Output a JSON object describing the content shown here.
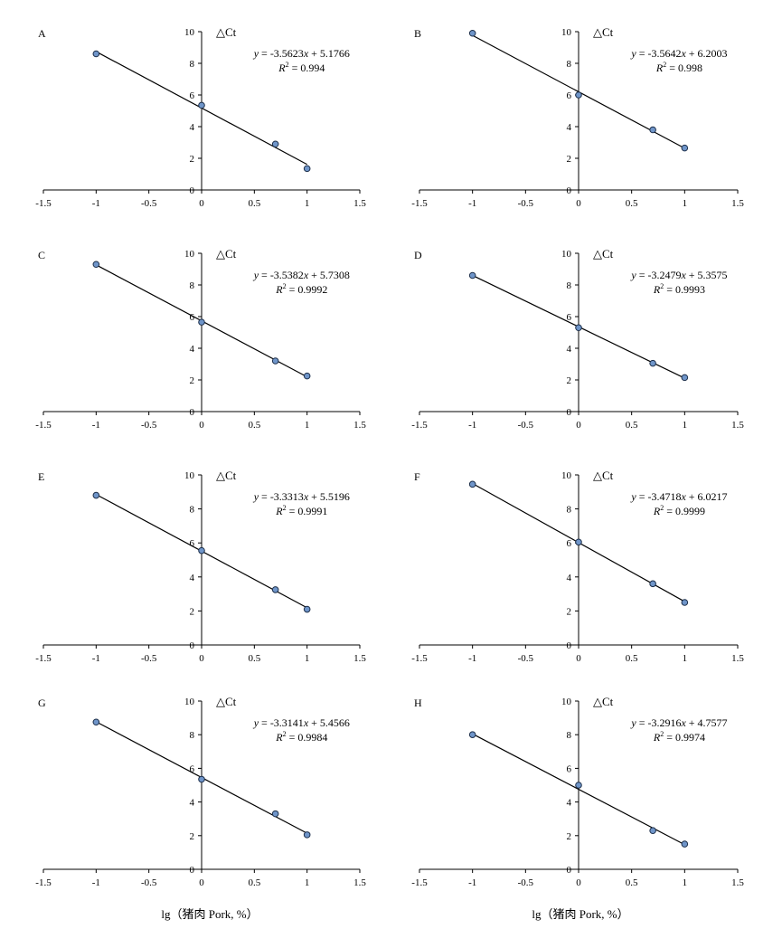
{
  "figure": {
    "bottom_xlabels": [
      "lg（猪肉 Pork, %）",
      "lg（猪肉 Pork, %）"
    ]
  },
  "chart_data": [
    {
      "type": "scatter",
      "panel": "A",
      "ylabel": "△Ct",
      "x": [
        -1,
        0,
        0.7,
        1
      ],
      "y": [
        8.6,
        5.35,
        2.9,
        1.35
      ],
      "fit": {
        "slope": -3.5623,
        "intercept": 5.1766,
        "equation": "y = -3.5623x + 5.1766",
        "r2_label": "R² = 0.994"
      },
      "xlim": [
        -1.5,
        1.5
      ],
      "ylim": [
        0,
        10
      ],
      "xticks": [
        "-1.5",
        "-1",
        "-0.5",
        "0",
        "0.5",
        "1",
        "1.5"
      ],
      "yticks": [
        "0",
        "2",
        "4",
        "6",
        "8",
        "10"
      ],
      "grid": false,
      "colors": {
        "marker": "#6f95c9",
        "line": "#000000"
      }
    },
    {
      "type": "scatter",
      "panel": "B",
      "ylabel": "△Ct",
      "x": [
        -1,
        0,
        0.7,
        1
      ],
      "y": [
        9.9,
        6.0,
        3.8,
        2.65
      ],
      "fit": {
        "slope": -3.5642,
        "intercept": 6.2003,
        "equation": "y = -3.5642x + 6.2003",
        "r2_label": "R² = 0.998"
      },
      "xlim": [
        -1.5,
        1.5
      ],
      "ylim": [
        0,
        10
      ],
      "xticks": [
        "-1.5",
        "-1",
        "-0.5",
        "0",
        "0.5",
        "1",
        "1.5"
      ],
      "yticks": [
        "0",
        "2",
        "4",
        "6",
        "8",
        "10"
      ],
      "grid": false,
      "colors": {
        "marker": "#6f95c9",
        "line": "#000000"
      }
    },
    {
      "type": "scatter",
      "panel": "C",
      "ylabel": "△Ct",
      "x": [
        -1,
        0,
        0.7,
        1
      ],
      "y": [
        9.3,
        5.65,
        3.2,
        2.25
      ],
      "fit": {
        "slope": -3.5382,
        "intercept": 5.7308,
        "equation": "y = -3.5382x + 5.7308",
        "r2_label": "R² = 0.9992"
      },
      "xlim": [
        -1.5,
        1.5
      ],
      "ylim": [
        0,
        10
      ],
      "xticks": [
        "-1.5",
        "-1",
        "-0.5",
        "0",
        "0.5",
        "1",
        "1.5"
      ],
      "yticks": [
        "0",
        "2",
        "4",
        "6",
        "8",
        "10"
      ],
      "grid": false,
      "colors": {
        "marker": "#6f95c9",
        "line": "#000000"
      }
    },
    {
      "type": "scatter",
      "panel": "D",
      "ylabel": "△Ct",
      "x": [
        -1,
        0,
        0.7,
        1
      ],
      "y": [
        8.6,
        5.3,
        3.05,
        2.15
      ],
      "fit": {
        "slope": -3.2479,
        "intercept": 5.3575,
        "equation": "y = -3.2479x + 5.3575",
        "r2_label": "R² = 0.9993"
      },
      "xlim": [
        -1.5,
        1.5
      ],
      "ylim": [
        0,
        10
      ],
      "xticks": [
        "-1.5",
        "-1",
        "-0.5",
        "0",
        "0.5",
        "1",
        "1.5"
      ],
      "yticks": [
        "0",
        "2",
        "4",
        "6",
        "8",
        "10"
      ],
      "grid": false,
      "colors": {
        "marker": "#6f95c9",
        "line": "#000000"
      }
    },
    {
      "type": "scatter",
      "panel": "E",
      "ylabel": "△Ct",
      "x": [
        -1,
        0,
        0.7,
        1
      ],
      "y": [
        8.8,
        5.55,
        3.25,
        2.1
      ],
      "fit": {
        "slope": -3.3313,
        "intercept": 5.5196,
        "equation": "y = -3.3313x + 5.5196",
        "r2_label": "R² = 0.9991"
      },
      "xlim": [
        -1.5,
        1.5
      ],
      "ylim": [
        0,
        10
      ],
      "xticks": [
        "-1.5",
        "-1",
        "-0.5",
        "0",
        "0.5",
        "1",
        "1.5"
      ],
      "yticks": [
        "0",
        "2",
        "4",
        "6",
        "8",
        "10"
      ],
      "grid": false,
      "colors": {
        "marker": "#6f95c9",
        "line": "#000000"
      }
    },
    {
      "type": "scatter",
      "panel": "F",
      "ylabel": "△Ct",
      "x": [
        -1,
        0,
        0.7,
        1
      ],
      "y": [
        9.45,
        6.05,
        3.6,
        2.5
      ],
      "fit": {
        "slope": -3.4718,
        "intercept": 6.0217,
        "equation": "y = -3.4718x + 6.0217",
        "r2_label": "R² = 0.9999"
      },
      "xlim": [
        -1.5,
        1.5
      ],
      "ylim": [
        0,
        10
      ],
      "xticks": [
        "-1.5",
        "-1",
        "-0.5",
        "0",
        "0.5",
        "1",
        "1.5"
      ],
      "yticks": [
        "0",
        "2",
        "4",
        "6",
        "8",
        "10"
      ],
      "grid": false,
      "colors": {
        "marker": "#6f95c9",
        "line": "#000000"
      }
    },
    {
      "type": "scatter",
      "panel": "G",
      "ylabel": "△Ct",
      "x": [
        -1,
        0,
        0.7,
        1
      ],
      "y": [
        8.75,
        5.35,
        3.3,
        2.05
      ],
      "fit": {
        "slope": -3.3141,
        "intercept": 5.4566,
        "equation": "y = -3.3141x + 5.4566",
        "r2_label": "R² = 0.9984"
      },
      "xlim": [
        -1.5,
        1.5
      ],
      "ylim": [
        0,
        10
      ],
      "xticks": [
        "-1.5",
        "-1",
        "-0.5",
        "0",
        "0.5",
        "1",
        "1.5"
      ],
      "yticks": [
        "0",
        "2",
        "4",
        "6",
        "8",
        "10"
      ],
      "grid": false,
      "colors": {
        "marker": "#6f95c9",
        "line": "#000000"
      }
    },
    {
      "type": "scatter",
      "panel": "H",
      "ylabel": "△Ct",
      "x": [
        -1,
        0,
        0.7,
        1
      ],
      "y": [
        8.0,
        5.0,
        2.3,
        1.5
      ],
      "fit": {
        "slope": -3.2916,
        "intercept": 4.7577,
        "equation": "y = -3.2916x + 4.7577",
        "r2_label": "R² = 0.9974"
      },
      "xlim": [
        -1.5,
        1.5
      ],
      "ylim": [
        0,
        10
      ],
      "xticks": [
        "-1.5",
        "-1",
        "-0.5",
        "0",
        "0.5",
        "1",
        "1.5"
      ],
      "yticks": [
        "0",
        "2",
        "4",
        "6",
        "8",
        "10"
      ],
      "grid": false,
      "colors": {
        "marker": "#6f95c9",
        "line": "#000000"
      }
    }
  ]
}
